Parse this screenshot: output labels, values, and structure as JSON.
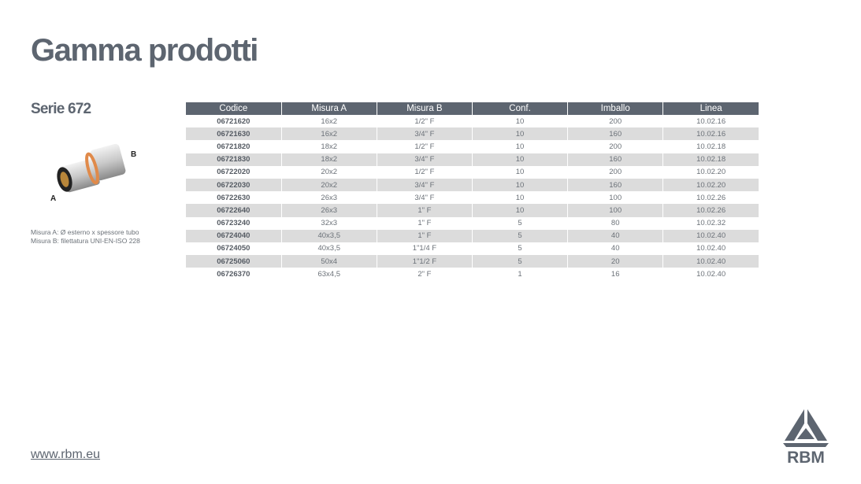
{
  "title": "Gamma prodotti",
  "serie": "Serie 672",
  "product": {
    "label_a": "A",
    "label_b": "B"
  },
  "notes": [
    "Misura A: Ø esterno x spessore tubo",
    "Misura B: filettatura UNI-EN-ISO 228"
  ],
  "table": {
    "headers": [
      "Codice",
      "Misura A",
      "Misura B",
      "Conf.",
      "Imballo",
      "Linea"
    ],
    "rows": [
      [
        "06721620",
        "16x2",
        "1/2\" F",
        "10",
        "200",
        "10.02.16"
      ],
      [
        "06721630",
        "16x2",
        "3/4\" F",
        "10",
        "160",
        "10.02.16"
      ],
      [
        "06721820",
        "18x2",
        "1/2\" F",
        "10",
        "200",
        "10.02.18"
      ],
      [
        "06721830",
        "18x2",
        "3/4\" F",
        "10",
        "160",
        "10.02.18"
      ],
      [
        "06722020",
        "20x2",
        "1/2\" F",
        "10",
        "200",
        "10.02.20"
      ],
      [
        "06722030",
        "20x2",
        "3/4\" F",
        "10",
        "160",
        "10.02.20"
      ],
      [
        "06722630",
        "26x3",
        "3/4\" F",
        "10",
        "100",
        "10.02.26"
      ],
      [
        "06722640",
        "26x3",
        "1\" F",
        "10",
        "100",
        "10.02.26"
      ],
      [
        "06723240",
        "32x3",
        "1\" F",
        "5",
        "80",
        "10.02.32"
      ],
      [
        "06724040",
        "40x3,5",
        "1\" F",
        "5",
        "40",
        "10.02.40"
      ],
      [
        "06724050",
        "40x3,5",
        "1\"1/4 F",
        "5",
        "40",
        "10.02.40"
      ],
      [
        "06725060",
        "50x4",
        "1\"1/2 F",
        "5",
        "20",
        "10.02.40"
      ],
      [
        "06726370",
        "63x4,5",
        "2\" F",
        "1",
        "16",
        "10.02.40"
      ]
    ]
  },
  "footer": {
    "website": "www.rbm.eu",
    "logo_text": "RBM"
  },
  "colors": {
    "primary": "#5d6570",
    "stripe": "#dcdcdc",
    "ring": "#e08a4a"
  }
}
